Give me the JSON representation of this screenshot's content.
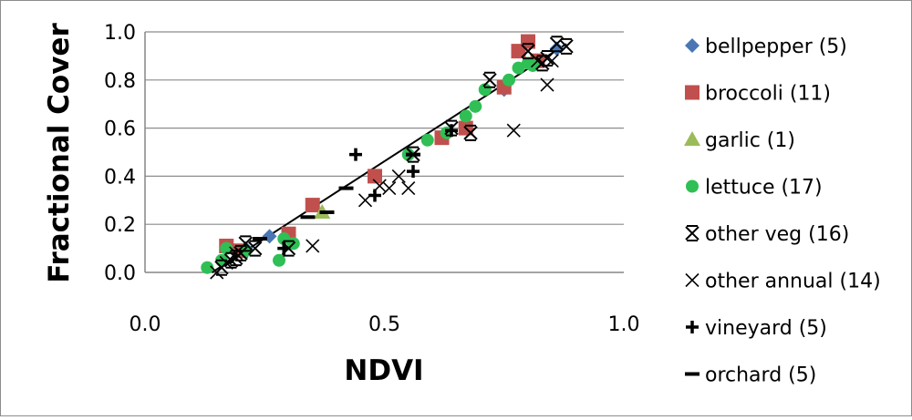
{
  "chart_data": {
    "type": "scatter",
    "title": "",
    "xlabel": "NDVI",
    "ylabel": "Fractional Cover",
    "xlim": [
      0.0,
      1.0
    ],
    "ylim": [
      0.0,
      1.0
    ],
    "x_ticks": [
      "0.0",
      "0.5",
      "1.0"
    ],
    "y_ticks": [
      "0.0",
      "0.2",
      "0.4",
      "0.6",
      "0.8",
      "1.0"
    ],
    "grid": "horizontal",
    "legend_position": "right",
    "fit_line": {
      "x": [
        0.14,
        0.88
      ],
      "y": [
        0.0,
        0.95
      ],
      "color": "#000000"
    },
    "series": [
      {
        "name": "bellpepper (5)",
        "marker": "diamond",
        "color": "#4a77b4",
        "points": [
          [
            0.21,
            0.1
          ],
          [
            0.26,
            0.15
          ],
          [
            0.3,
            0.14
          ],
          [
            0.75,
            0.76
          ],
          [
            0.86,
            0.93
          ]
        ]
      },
      {
        "name": "broccoli (11)",
        "marker": "square",
        "color": "#c0504d",
        "points": [
          [
            0.17,
            0.11
          ],
          [
            0.2,
            0.09
          ],
          [
            0.3,
            0.16
          ],
          [
            0.35,
            0.28
          ],
          [
            0.48,
            0.4
          ],
          [
            0.62,
            0.56
          ],
          [
            0.67,
            0.6
          ],
          [
            0.75,
            0.77
          ],
          [
            0.78,
            0.92
          ],
          [
            0.8,
            0.96
          ],
          [
            0.82,
            0.88
          ]
        ]
      },
      {
        "name": "garlic (1)",
        "marker": "triangle",
        "color": "#9bbb59",
        "points": [
          [
            0.37,
            0.25
          ]
        ]
      },
      {
        "name": "lettuce (17)",
        "marker": "circle",
        "color": "#2fbf55",
        "points": [
          [
            0.13,
            0.02
          ],
          [
            0.16,
            0.05
          ],
          [
            0.17,
            0.1
          ],
          [
            0.21,
            0.09
          ],
          [
            0.28,
            0.05
          ],
          [
            0.29,
            0.14
          ],
          [
            0.31,
            0.12
          ],
          [
            0.55,
            0.49
          ],
          [
            0.59,
            0.55
          ],
          [
            0.63,
            0.58
          ],
          [
            0.67,
            0.65
          ],
          [
            0.69,
            0.69
          ],
          [
            0.71,
            0.76
          ],
          [
            0.76,
            0.8
          ],
          [
            0.78,
            0.85
          ],
          [
            0.8,
            0.87
          ],
          [
            0.81,
            0.86
          ]
        ]
      },
      {
        "name": "other veg (16)",
        "marker": "asterisk",
        "color": "#000000",
        "points": [
          [
            0.16,
            0.02
          ],
          [
            0.18,
            0.05
          ],
          [
            0.19,
            0.06
          ],
          [
            0.2,
            0.08
          ],
          [
            0.21,
            0.12
          ],
          [
            0.23,
            0.1
          ],
          [
            0.3,
            0.1
          ],
          [
            0.56,
            0.49
          ],
          [
            0.64,
            0.6
          ],
          [
            0.68,
            0.58
          ],
          [
            0.72,
            0.8
          ],
          [
            0.8,
            0.92
          ],
          [
            0.83,
            0.87
          ],
          [
            0.84,
            0.89
          ],
          [
            0.86,
            0.95
          ],
          [
            0.88,
            0.94
          ]
        ]
      },
      {
        "name": "other annual (14)",
        "marker": "x",
        "color": "#000000",
        "points": [
          [
            0.15,
            0.0
          ],
          [
            0.17,
            0.04
          ],
          [
            0.19,
            0.08
          ],
          [
            0.21,
            0.12
          ],
          [
            0.35,
            0.11
          ],
          [
            0.46,
            0.3
          ],
          [
            0.49,
            0.36
          ],
          [
            0.51,
            0.35
          ],
          [
            0.53,
            0.4
          ],
          [
            0.55,
            0.35
          ],
          [
            0.77,
            0.59
          ],
          [
            0.84,
            0.78
          ],
          [
            0.82,
            0.88
          ],
          [
            0.85,
            0.88
          ]
        ]
      },
      {
        "name": "vineyard (5)",
        "marker": "plus",
        "color": "#000000",
        "points": [
          [
            0.29,
            0.1
          ],
          [
            0.44,
            0.49
          ],
          [
            0.48,
            0.32
          ],
          [
            0.56,
            0.42
          ],
          [
            0.64,
            0.59
          ]
        ]
      },
      {
        "name": "orchard (5)",
        "marker": "dash",
        "color": "#000000",
        "points": [
          [
            0.24,
            0.14
          ],
          [
            0.34,
            0.23
          ],
          [
            0.38,
            0.25
          ],
          [
            0.42,
            0.35
          ],
          [
            0.56,
            0.49
          ]
        ]
      }
    ]
  }
}
